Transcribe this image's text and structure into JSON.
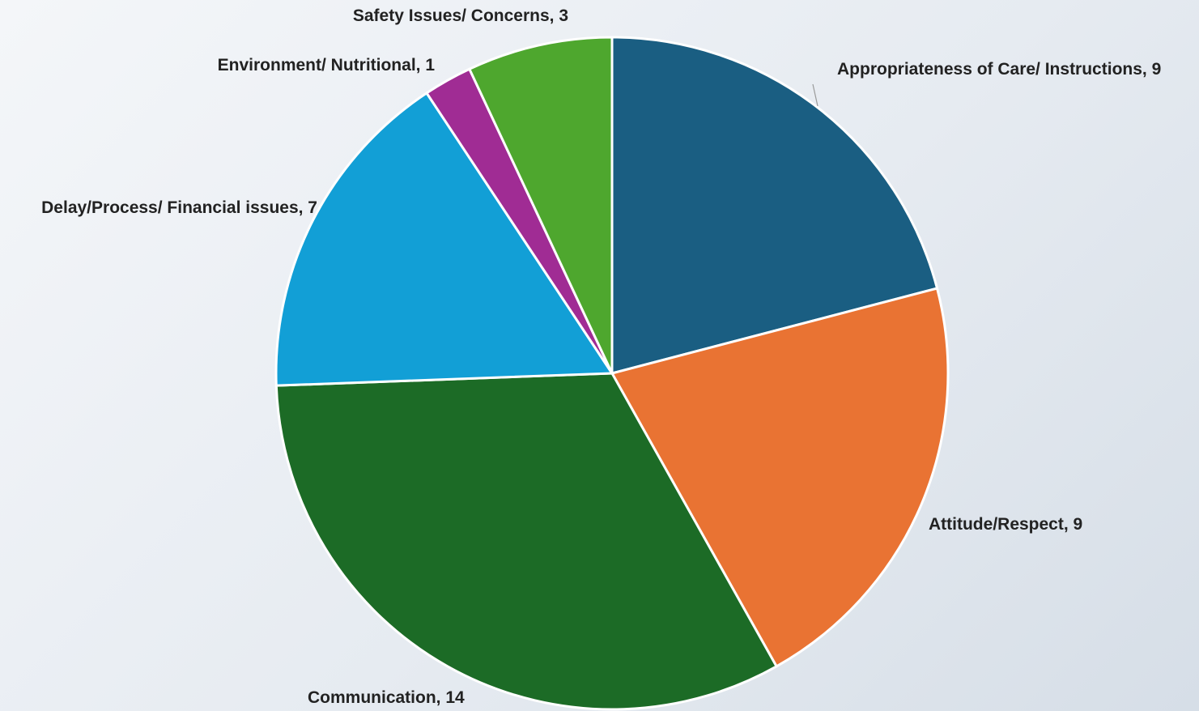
{
  "chart_data": {
    "type": "pie",
    "title": "",
    "start_angle_deg": 0,
    "direction": "clockwise",
    "label_format": "{name}, {value}",
    "slices": [
      {
        "name": "Appropriateness of Care/ Instructions",
        "value": 9,
        "color": "#1a5e82"
      },
      {
        "name": "Attitude/Respect",
        "value": 9,
        "color": "#e97333"
      },
      {
        "name": "Communication",
        "value": 14,
        "color": "#1c6b26"
      },
      {
        "name": "Delay/Process/ Financial issues",
        "value": 7,
        "color": "#129fd6"
      },
      {
        "name": "Environment/ Nutritional",
        "value": 1,
        "color": "#a02c94"
      },
      {
        "name": "Safety Issues/ Concerns",
        "value": 3,
        "color": "#4ea72e"
      }
    ]
  }
}
